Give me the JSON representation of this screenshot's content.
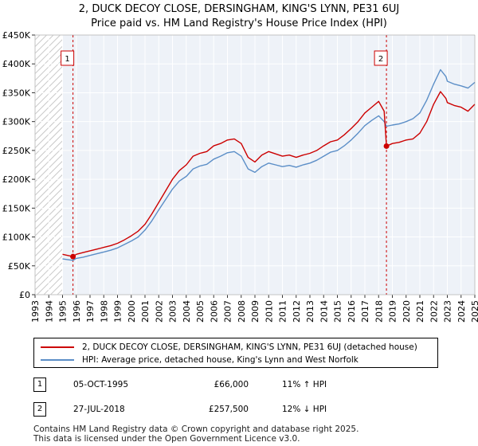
{
  "title_line1": "2, DUCK DECOY CLOSE, DERSINGHAM, KING'S LYNN, PE31 6UJ",
  "title_line2": "Price paid vs. HM Land Registry's House Price Index (HPI)",
  "colors": {
    "property": "#cc0000",
    "hpi": "#5b8ec7",
    "grid": "#ffffff",
    "plot_bg": "#eef2f8",
    "hatch": "#c8c8c8"
  },
  "legend": {
    "property_label": "2, DUCK DECOY CLOSE, DERSINGHAM, KING'S LYNN, PE31 6UJ (detached house)",
    "hpi_label": "HPI: Average price, detached house, King's Lynn and West Norfolk"
  },
  "transactions": [
    {
      "num": "1",
      "date": "05-OCT-1995",
      "price": "£66,000",
      "hpi_diff": "11% ↑ HPI"
    },
    {
      "num": "2",
      "date": "27-JUL-2018",
      "price": "£257,500",
      "hpi_diff": "12% ↓ HPI"
    }
  ],
  "footer_line1": "Contains HM Land Registry data © Crown copyright and database right 2025.",
  "footer_line2": "This data is licensed under the Open Government Licence v3.0.",
  "chart_data": {
    "type": "line",
    "title": "Price paid vs. HM Land Registry's House Price Index (HPI)",
    "xlabel": "",
    "ylabel": "",
    "xlim": [
      1993,
      2025
    ],
    "ylim": [
      0,
      450000
    ],
    "y_ticks": [
      0,
      50000,
      100000,
      150000,
      200000,
      250000,
      300000,
      350000,
      400000,
      450000
    ],
    "y_tick_labels": [
      "£0",
      "£50K",
      "£100K",
      "£150K",
      "£200K",
      "£250K",
      "£300K",
      "£350K",
      "£400K",
      "£450K"
    ],
    "x_ticks": [
      1993,
      1994,
      1995,
      1996,
      1997,
      1998,
      1999,
      2000,
      2001,
      2002,
      2003,
      2004,
      2005,
      2006,
      2007,
      2008,
      2009,
      2010,
      2011,
      2012,
      2013,
      2014,
      2015,
      2016,
      2017,
      2018,
      2019,
      2020,
      2021,
      2022,
      2023,
      2024,
      2025
    ],
    "x_tick_labels": [
      "1993",
      "1994",
      "1995",
      "1996",
      "1997",
      "1998",
      "1999",
      "2000",
      "2001",
      "2002",
      "2003",
      "2004",
      "2005",
      "2006",
      "2007",
      "2008",
      "2009",
      "2010",
      "2011",
      "2012",
      "2013",
      "2014",
      "2015",
      "2016",
      "2017",
      "2018",
      "2019",
      "2020",
      "2021",
      "2022",
      "2023",
      "2024",
      "2025"
    ],
    "hatched_region": [
      1993,
      1995.0
    ],
    "series": [
      {
        "name": "2, DUCK DECOY CLOSE, DERSINGHAM, KING'S LYNN, PE31 6UJ (detached house)",
        "x": [
          1995.0,
          1995.76,
          1996.0,
          1996.5,
          1997.0,
          1997.5,
          1998.0,
          1998.5,
          1999.0,
          1999.5,
          2000.0,
          2000.5,
          2001.0,
          2001.5,
          2002.0,
          2002.5,
          2003.0,
          2003.5,
          2004.0,
          2004.5,
          2005.0,
          2005.5,
          2006.0,
          2006.5,
          2007.0,
          2007.5,
          2008.0,
          2008.5,
          2009.0,
          2009.5,
          2010.0,
          2010.5,
          2011.0,
          2011.5,
          2012.0,
          2012.5,
          2013.0,
          2013.5,
          2014.0,
          2014.5,
          2015.0,
          2015.5,
          2016.0,
          2016.5,
          2017.0,
          2017.5,
          2018.0,
          2018.4,
          2018.57,
          2019.0,
          2019.5,
          2020.0,
          2020.5,
          2021.0,
          2021.5,
          2022.0,
          2022.5,
          2022.9,
          2023.0,
          2023.5,
          2024.0,
          2024.5,
          2025.0
        ],
        "values": [
          70000,
          66000,
          70000,
          73000,
          76000,
          79000,
          82000,
          85000,
          89000,
          95000,
          102000,
          110000,
          122000,
          140000,
          160000,
          180000,
          200000,
          215000,
          225000,
          240000,
          245000,
          248000,
          258000,
          262000,
          268000,
          270000,
          262000,
          238000,
          230000,
          242000,
          248000,
          244000,
          240000,
          242000,
          238000,
          242000,
          245000,
          250000,
          258000,
          265000,
          268000,
          277000,
          288000,
          300000,
          315000,
          325000,
          335000,
          318000,
          257500,
          262000,
          264000,
          268000,
          270000,
          280000,
          300000,
          330000,
          352000,
          340000,
          333000,
          328000,
          325000,
          318000,
          330000
        ]
      },
      {
        "name": "HPI: Average price, detached house, King's Lynn and West Norfolk",
        "x": [
          1995.0,
          1995.76,
          1996.0,
          1996.5,
          1997.0,
          1997.5,
          1998.0,
          1998.5,
          1999.0,
          1999.5,
          2000.0,
          2000.5,
          2001.0,
          2001.5,
          2002.0,
          2002.5,
          2003.0,
          2003.5,
          2004.0,
          2004.5,
          2005.0,
          2005.5,
          2006.0,
          2006.5,
          2007.0,
          2007.5,
          2008.0,
          2008.5,
          2009.0,
          2009.5,
          2010.0,
          2010.5,
          2011.0,
          2011.5,
          2012.0,
          2012.5,
          2013.0,
          2013.5,
          2014.0,
          2014.5,
          2015.0,
          2015.5,
          2016.0,
          2016.5,
          2017.0,
          2017.5,
          2018.0,
          2018.4,
          2018.57,
          2019.0,
          2019.5,
          2020.0,
          2020.5,
          2021.0,
          2021.5,
          2022.0,
          2022.5,
          2022.9,
          2023.0,
          2023.5,
          2024.0,
          2024.5,
          2025.0
        ],
        "values": [
          62000,
          59500,
          63000,
          65000,
          68000,
          71000,
          74000,
          77000,
          81000,
          87000,
          93000,
          100000,
          112000,
          128000,
          147000,
          165000,
          183000,
          197000,
          205000,
          218000,
          223000,
          226000,
          235000,
          240000,
          246000,
          248000,
          240000,
          218000,
          212000,
          222000,
          228000,
          225000,
          222000,
          224000,
          221000,
          225000,
          228000,
          233000,
          240000,
          247000,
          250000,
          258000,
          268000,
          280000,
          293000,
          302000,
          310000,
          300000,
          292000,
          294000,
          296000,
          300000,
          305000,
          315000,
          337000,
          365000,
          390000,
          378000,
          370000,
          365000,
          362000,
          358000,
          368000
        ]
      }
    ],
    "annotations": [
      {
        "label": "1",
        "x": 1995.76,
        "y": 66000
      },
      {
        "label": "2",
        "x": 2018.57,
        "y": 257500
      }
    ]
  }
}
